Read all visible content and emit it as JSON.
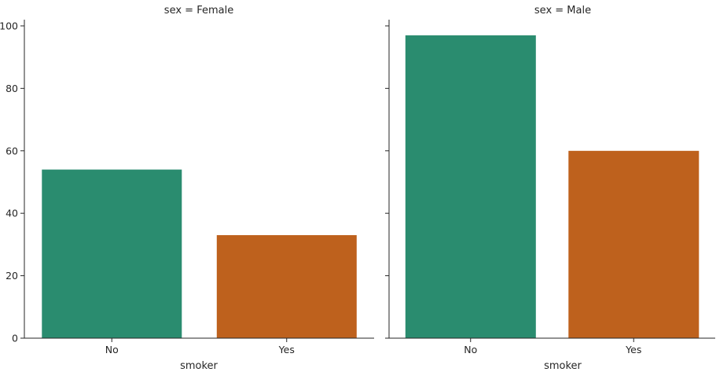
{
  "chart_data": {
    "type": "bar",
    "xlabel": "smoker",
    "ylabel": "",
    "categories": [
      "No",
      "Yes"
    ],
    "ylim": [
      0,
      102
    ],
    "yticks": [
      0,
      20,
      40,
      60,
      80,
      100
    ],
    "colors": [
      "#2a8c6f",
      "#be611d"
    ],
    "legend": "none",
    "grid": false,
    "panels": [
      {
        "title": "sex = Female",
        "values": [
          54,
          33
        ]
      },
      {
        "title": "sex = Male",
        "values": [
          97,
          60
        ]
      }
    ]
  }
}
